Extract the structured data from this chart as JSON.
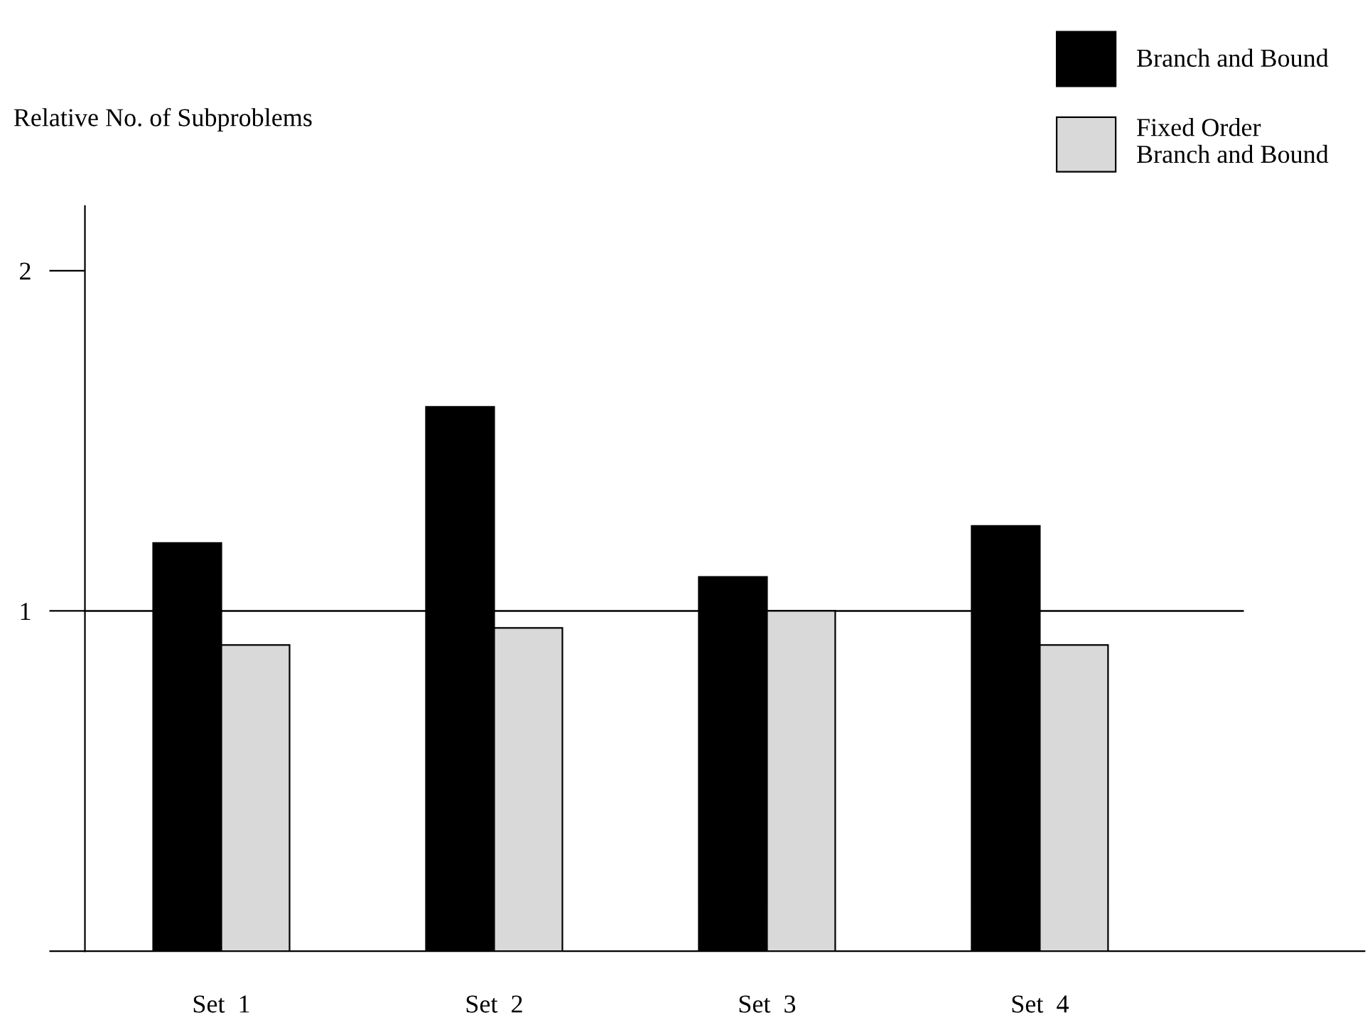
{
  "chart_data": {
    "type": "bar",
    "ylabel": "Relative No. of Subproblems",
    "categories": [
      "Set  1",
      "Set  2",
      "Set  3",
      "Set  4"
    ],
    "series": [
      {
        "name": "Branch and Bound",
        "color": "#000000",
        "values": [
          1.2,
          1.6,
          1.1,
          1.25
        ]
      },
      {
        "name": "Fixed Order\nBranch and Bound",
        "color": "#d9d9d9",
        "values": [
          0.9,
          0.95,
          1.0,
          0.9
        ]
      }
    ],
    "ylim": [
      0,
      2.19
    ],
    "yticks": [
      {
        "value": 0,
        "label": null
      },
      1,
      2
    ],
    "ref_lines": [
      {
        "axis": "y",
        "value": 1,
        "label": null,
        "color": "#000000"
      }
    ],
    "legend": "top right",
    "grid": false
  }
}
